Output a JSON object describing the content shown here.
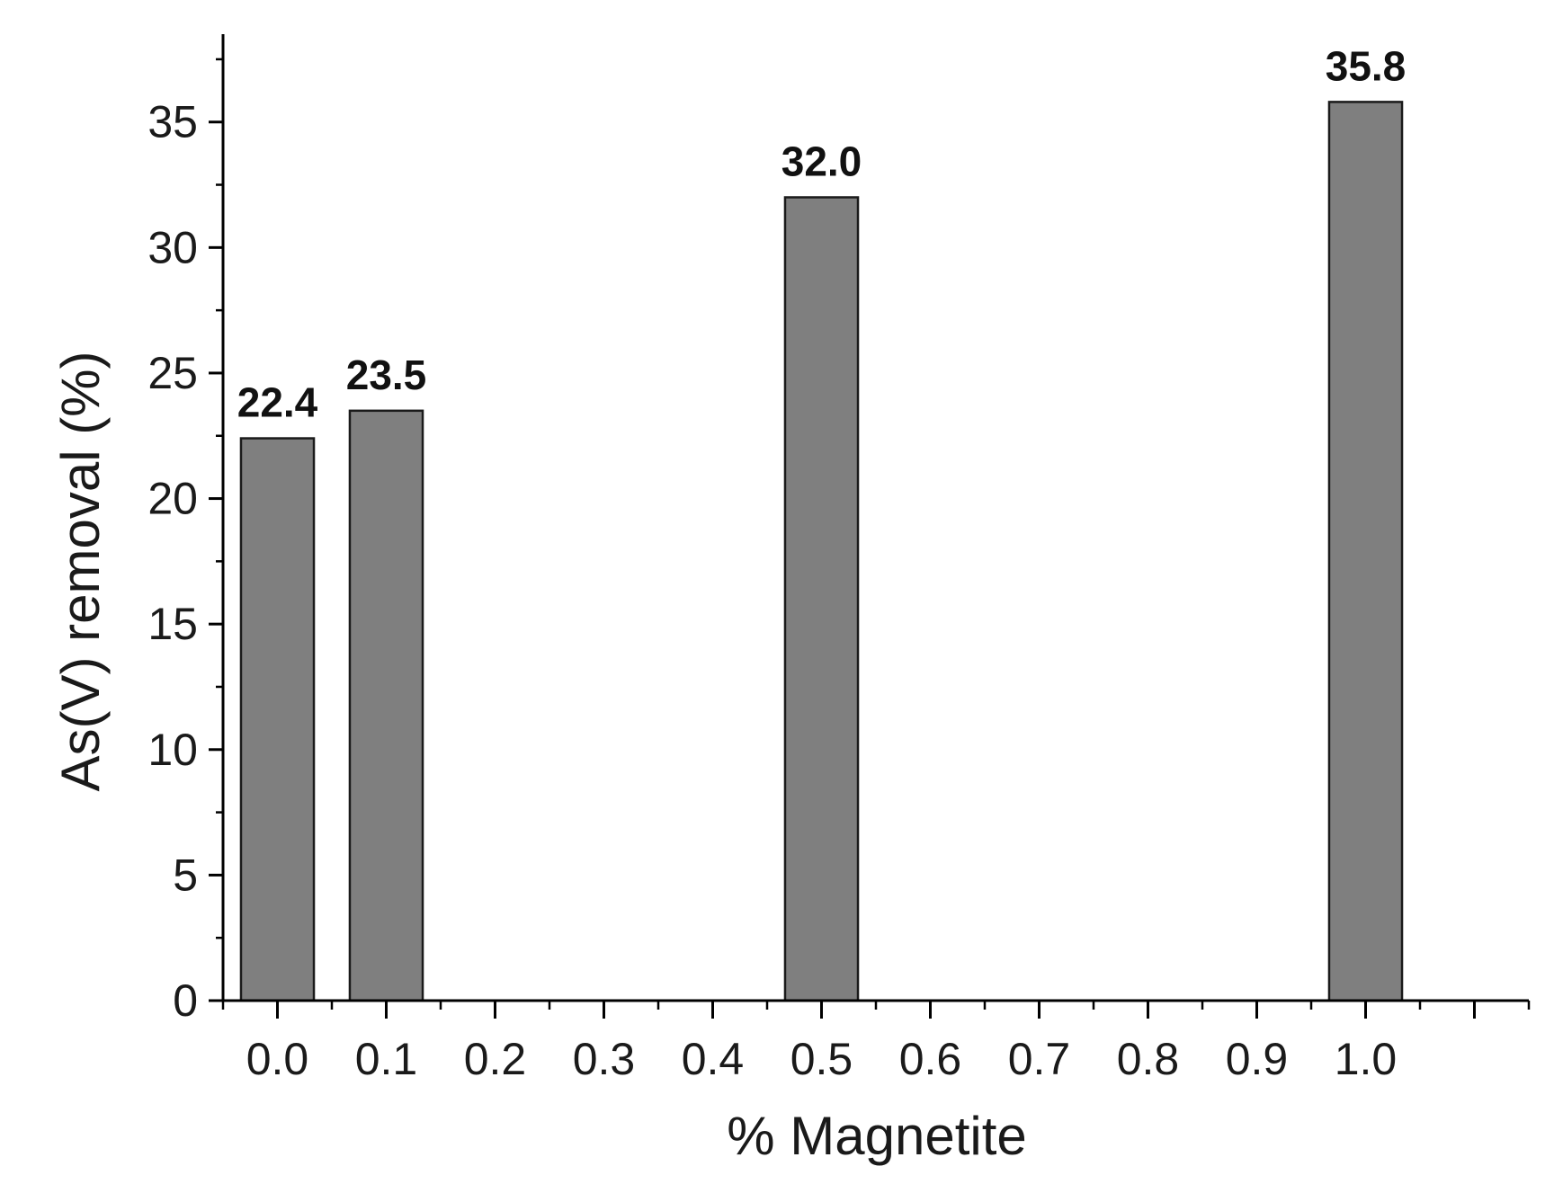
{
  "chart_data": {
    "type": "bar",
    "title": "",
    "xlabel": "% Magnetite",
    "ylabel": "As(V) removal (%)",
    "x": [
      0.0,
      0.1,
      0.5,
      1.0
    ],
    "values": [
      22.4,
      23.5,
      32.0,
      35.8
    ],
    "data_labels": [
      "22.4",
      "23.5",
      "32.0",
      "35.8"
    ],
    "xlim": [
      -0.05,
      1.15
    ],
    "ylim": [
      0,
      38.5
    ],
    "x_ticks": [
      0.0,
      0.1,
      0.2,
      0.3,
      0.4,
      0.5,
      0.6,
      0.7,
      0.8,
      0.9,
      1.0
    ],
    "x_tick_labels": [
      "0.0",
      "0.1",
      "0.2",
      "0.3",
      "0.4",
      "0.5",
      "0.6",
      "0.7",
      "0.8",
      "0.9",
      "1.0"
    ],
    "y_ticks": [
      0,
      5,
      10,
      15,
      20,
      25,
      30,
      35
    ],
    "y_tick_labels": [
      "0",
      "5",
      "10",
      "15",
      "20",
      "25",
      "30",
      "35"
    ],
    "bar_width": 0.067,
    "bar_color": "#7f7f7f",
    "grid": false,
    "legend": "none"
  }
}
